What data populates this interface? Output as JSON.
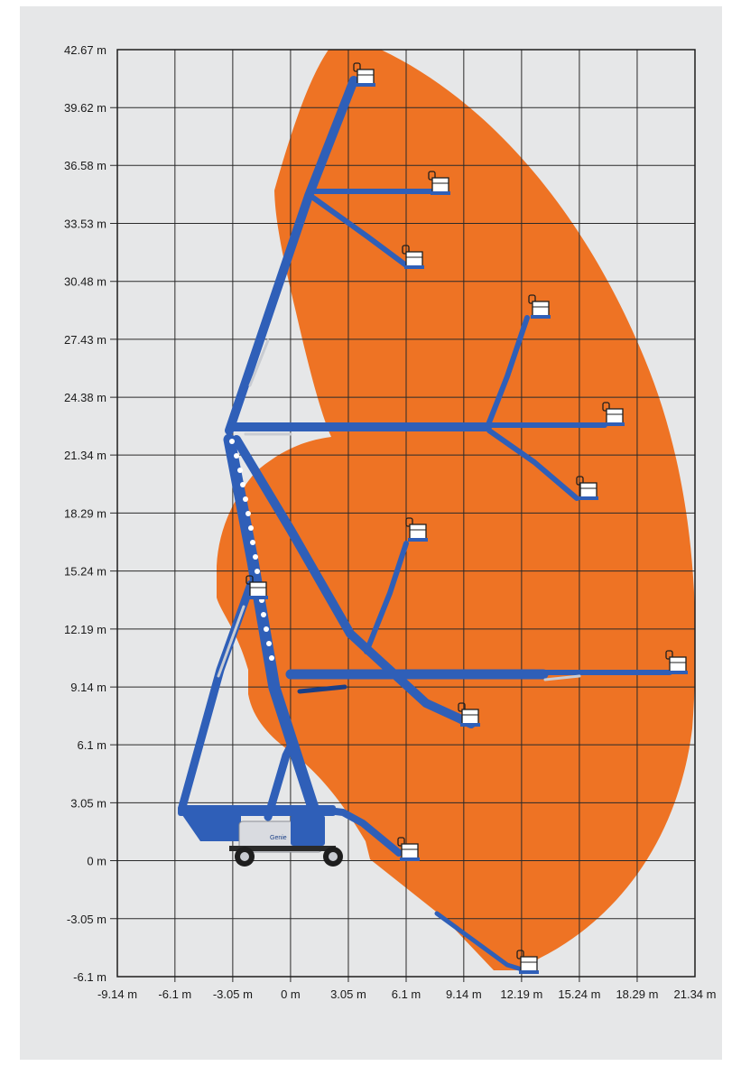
{
  "diagram": {
    "type": "working-envelope",
    "envelope_color": "#ee7324",
    "machine_color": "#2f5fb8",
    "background_color": "#e6e7e8",
    "y_axis": {
      "range": [
        -6.1,
        42.67
      ],
      "ticks": [
        {
          "value": 42.67,
          "label": "42.67 m"
        },
        {
          "value": 39.62,
          "label": "39.62 m"
        },
        {
          "value": 36.58,
          "label": "36.58 m"
        },
        {
          "value": 33.53,
          "label": "33.53 m"
        },
        {
          "value": 30.48,
          "label": "30.48 m"
        },
        {
          "value": 27.43,
          "label": "27.43 m"
        },
        {
          "value": 24.38,
          "label": "24.38 m"
        },
        {
          "value": 21.34,
          "label": "21.34 m"
        },
        {
          "value": 18.29,
          "label": "18.29 m"
        },
        {
          "value": 15.24,
          "label": "15.24 m"
        },
        {
          "value": 12.19,
          "label": "12.19 m"
        },
        {
          "value": 9.14,
          "label": "9.14 m"
        },
        {
          "value": 6.1,
          "label": "6.1 m"
        },
        {
          "value": 3.05,
          "label": "3.05 m"
        },
        {
          "value": 0,
          "label": "0 m"
        },
        {
          "value": -3.05,
          "label": "-3.05 m"
        },
        {
          "value": -6.1,
          "label": "-6.1 m"
        }
      ]
    },
    "x_axis": {
      "range": [
        -9.14,
        21.34
      ],
      "ticks": [
        {
          "value": -9.14,
          "label": "-9.14 m"
        },
        {
          "value": -6.1,
          "label": "-6.1 m"
        },
        {
          "value": -3.05,
          "label": "-3.05 m"
        },
        {
          "value": 0,
          "label": "0 m"
        },
        {
          "value": 3.05,
          "label": "3.05 m"
        },
        {
          "value": 6.1,
          "label": "6.1 m"
        },
        {
          "value": 9.14,
          "label": "9.14 m"
        },
        {
          "value": 12.19,
          "label": "12.19 m"
        },
        {
          "value": 15.24,
          "label": "15.24 m"
        },
        {
          "value": 18.29,
          "label": "18.29 m"
        },
        {
          "value": 21.34,
          "label": "21.34 m"
        }
      ]
    },
    "machine_brand": "Genie"
  }
}
